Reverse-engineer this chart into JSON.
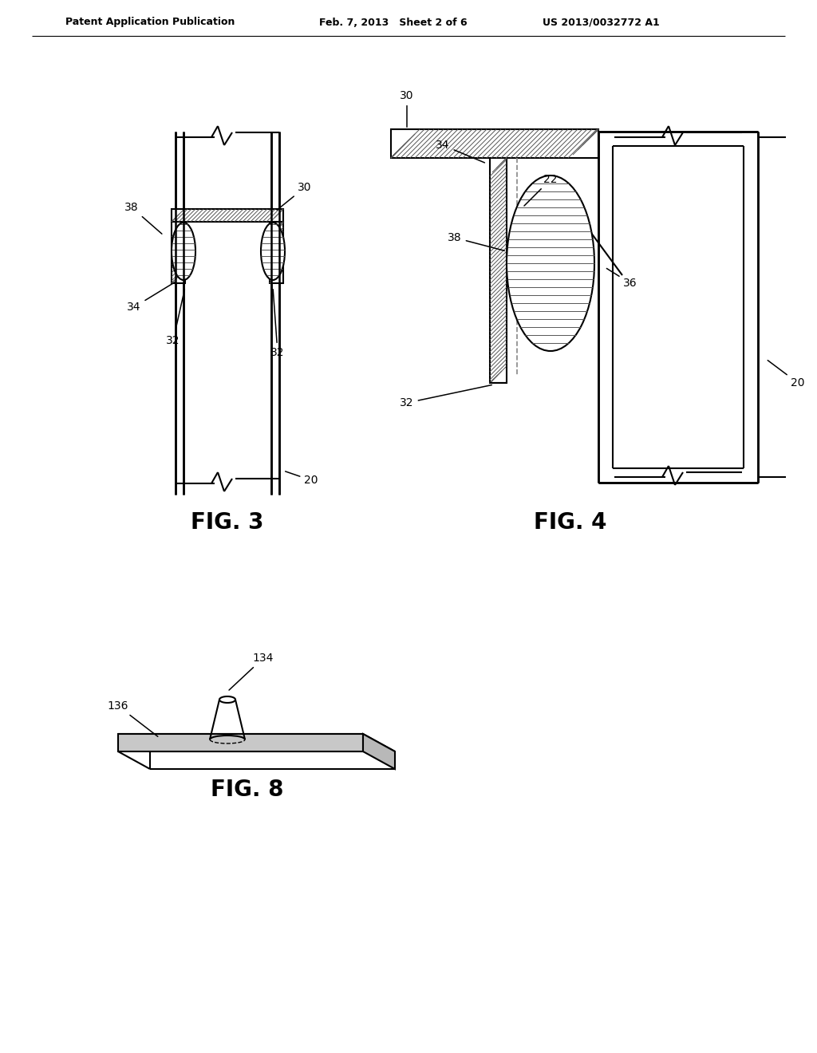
{
  "bg_color": "#ffffff",
  "header_left": "Patent Application Publication",
  "header_center": "Feb. 7, 2013   Sheet 2 of 6",
  "header_right": "US 2013/0032772 A1",
  "fig3_label": "FIG. 3",
  "fig4_label": "FIG. 4",
  "fig8_label": "FIG. 8",
  "line_color": "#000000",
  "lw": 1.5,
  "lw_thick": 2.5
}
